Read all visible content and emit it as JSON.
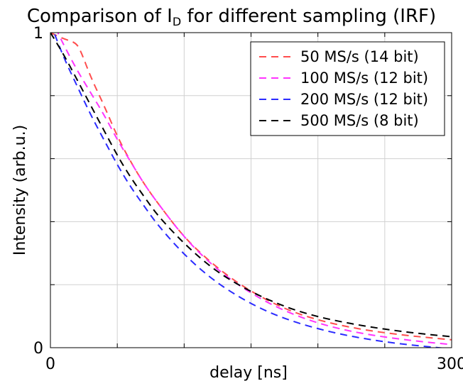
{
  "chart_data": {
    "type": "line",
    "title_prefix": "Comparison of I",
    "title_subscript": "D",
    "title_suffix": " for different sampling (IRF)",
    "xlabel": "delay [ns]",
    "ylabel": "Intensity (arb.u.)",
    "xlim": [
      0,
      300
    ],
    "ylim": [
      0,
      1
    ],
    "x_ticks_labeled": [
      {
        "value": 0,
        "label": "0"
      },
      {
        "value": 300,
        "label": "300"
      }
    ],
    "y_ticks_labeled": [
      {
        "value": 0,
        "label": "0"
      },
      {
        "value": 1,
        "label": "1"
      }
    ],
    "grid": true,
    "legend_position": "top-right",
    "series": [
      {
        "name": "50 MS/s (14 bit)",
        "color": "#ff4d4d",
        "dash": "10,7",
        "x": [
          0,
          10,
          18,
          22,
          30,
          40,
          50,
          60,
          70,
          80,
          100,
          120,
          140,
          160,
          180,
          200,
          220,
          240,
          260,
          280,
          300
        ],
        "y": [
          1.0,
          0.98,
          0.97,
          0.95,
          0.86,
          0.77,
          0.67,
          0.59,
          0.52,
          0.46,
          0.35,
          0.27,
          0.205,
          0.155,
          0.115,
          0.088,
          0.068,
          0.053,
          0.042,
          0.033,
          0.025
        ]
      },
      {
        "name": "100 MS/s (12 bit)",
        "color": "#ff33ff",
        "dash": "10,7",
        "x": [
          0,
          10,
          20,
          30,
          40,
          50,
          60,
          70,
          80,
          100,
          120,
          140,
          160,
          180,
          200,
          220,
          240,
          260,
          280,
          300
        ],
        "y": [
          1.05,
          0.96,
          0.88,
          0.81,
          0.74,
          0.66,
          0.59,
          0.52,
          0.46,
          0.35,
          0.265,
          0.2,
          0.148,
          0.108,
          0.078,
          0.056,
          0.04,
          0.028,
          0.018,
          0.01
        ]
      },
      {
        "name": "200 MS/s (12 bit)",
        "color": "#2b2bff",
        "dash": "10,7",
        "x": [
          0,
          10,
          20,
          30,
          40,
          50,
          60,
          70,
          80,
          100,
          120,
          140,
          160,
          180,
          200,
          220,
          240,
          260,
          280,
          300
        ],
        "y": [
          1.03,
          0.92,
          0.83,
          0.74,
          0.66,
          0.58,
          0.51,
          0.45,
          0.39,
          0.295,
          0.22,
          0.163,
          0.118,
          0.085,
          0.06,
          0.04,
          0.025,
          0.013,
          0.004,
          -0.004
        ]
      },
      {
        "name": "500 MS/s (8 bit)",
        "color": "#000000",
        "dash": "10,7",
        "x": [
          0,
          10,
          20,
          30,
          40,
          50,
          60,
          70,
          80,
          100,
          120,
          140,
          160,
          180,
          200,
          220,
          240,
          260,
          280,
          300
        ],
        "y": [
          1.0,
          0.93,
          0.85,
          0.77,
          0.69,
          0.61,
          0.54,
          0.48,
          0.42,
          0.33,
          0.255,
          0.2,
          0.157,
          0.123,
          0.098,
          0.08,
          0.065,
          0.053,
          0.043,
          0.035
        ]
      }
    ]
  }
}
